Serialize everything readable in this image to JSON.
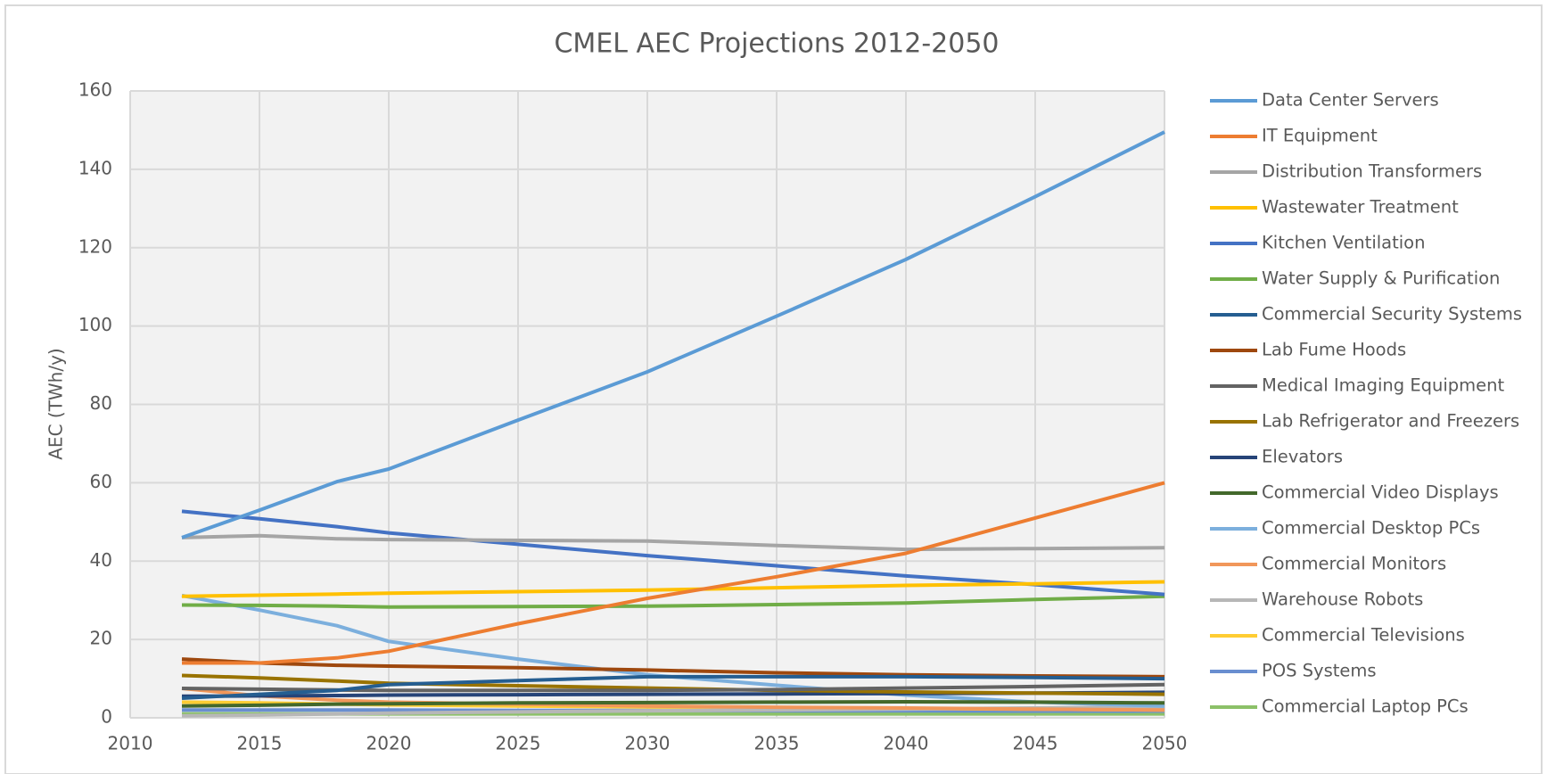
{
  "chart_data": {
    "type": "line",
    "title": "CMEL AEC Projections 2012-2050",
    "y_label": "AEC (TWh/y)",
    "x": [
      2012,
      2015,
      2018,
      2020,
      2025,
      2030,
      2035,
      2040,
      2045,
      2050
    ],
    "xlim": [
      2010,
      2050
    ],
    "xticks": [
      2010,
      2015,
      2020,
      2025,
      2030,
      2035,
      2040,
      2045,
      2050
    ],
    "ylim": [
      0,
      160
    ],
    "yticks": [
      0,
      20,
      40,
      60,
      80,
      100,
      120,
      140,
      160
    ],
    "grid": true,
    "legend": "right",
    "series": [
      {
        "name": "Data Center Servers",
        "color": "#5b9bd5",
        "values": [
          46,
          53,
          60.3,
          63.5,
          76,
          88.3,
          102.5,
          117,
          133,
          149.5
        ]
      },
      {
        "name": "IT Equipment",
        "color": "#ed7d31",
        "values": [
          14,
          14,
          15.3,
          17,
          24,
          30.5,
          36,
          42,
          51,
          60
        ]
      },
      {
        "name": "Distribution Transformers",
        "color": "#a5a5a5",
        "values": [
          46,
          46.5,
          45.7,
          45.5,
          45.3,
          45.1,
          44,
          43,
          43.2,
          43.4
        ]
      },
      {
        "name": "Wastewater Treatment",
        "color": "#ffc000",
        "values": [
          31,
          31.3,
          31.6,
          31.8,
          32.2,
          32.6,
          33.2,
          33.8,
          34.2,
          34.7
        ]
      },
      {
        "name": "Kitchen Ventilation",
        "color": "#4472c4",
        "values": [
          52.7,
          50.8,
          48.8,
          47.2,
          44.3,
          41.4,
          38.8,
          36.2,
          34,
          31.5
        ]
      },
      {
        "name": "Water Supply & Purification",
        "color": "#70ad47",
        "values": [
          28.8,
          28.7,
          28.5,
          28.3,
          28.4,
          28.5,
          28.9,
          29.3,
          30.2,
          31
        ]
      },
      {
        "name": "Commercial Security Systems",
        "color": "#255e91",
        "values": [
          5,
          6,
          7,
          8.5,
          9.5,
          10.5,
          10.5,
          10.5,
          10.3,
          10
        ]
      },
      {
        "name": "Lab Fume Hoods",
        "color": "#9e480e",
        "values": [
          15,
          14,
          13.4,
          13.2,
          12.8,
          12.2,
          11.5,
          11,
          10.7,
          10.5
        ]
      },
      {
        "name": "Medical Imaging Equipment",
        "color": "#636363",
        "values": [
          7.5,
          7.3,
          7.1,
          7,
          7,
          7,
          7.2,
          7.6,
          8,
          8.5
        ]
      },
      {
        "name": "Lab Refrigerator and Freezers",
        "color": "#997300",
        "values": [
          10.8,
          10.2,
          9.4,
          8.8,
          8.2,
          7.6,
          7,
          6.6,
          6.3,
          6
        ]
      },
      {
        "name": "Elevators",
        "color": "#264478",
        "values": [
          5.5,
          5.6,
          5.7,
          5.8,
          5.9,
          6,
          6.1,
          6.2,
          6.3,
          6.5
        ]
      },
      {
        "name": "Commercial Video Displays",
        "color": "#43682b",
        "values": [
          3,
          3.2,
          3.5,
          3.6,
          3.8,
          3.9,
          4,
          4.1,
          4,
          3.8
        ]
      },
      {
        "name": "Commercial Desktop PCs",
        "color": "#7cafdd",
        "values": [
          31.2,
          27.5,
          23.5,
          19.5,
          15,
          11,
          8.3,
          5.8,
          4,
          3
        ]
      },
      {
        "name": "Commercial Monitors",
        "color": "#f1975a",
        "values": [
          7.5,
          5.6,
          4.5,
          4,
          3.5,
          3,
          2.7,
          2.5,
          2.2,
          2
        ]
      },
      {
        "name": "Warehouse Robots",
        "color": "#b7b7b7",
        "values": [
          0.5,
          0.7,
          1,
          1.2,
          1.5,
          1.8,
          2,
          2.2,
          2.5,
          2.8
        ]
      },
      {
        "name": "Commercial Televisions",
        "color": "#ffcd33",
        "values": [
          4,
          3.8,
          3.5,
          3.3,
          3,
          2.8,
          2.6,
          2.4,
          2.2,
          2
        ]
      },
      {
        "name": "POS Systems",
        "color": "#698ed0",
        "values": [
          2,
          2,
          2,
          2,
          1.9,
          1.9,
          1.8,
          1.8,
          1.7,
          1.7
        ]
      },
      {
        "name": "Commercial Laptop PCs",
        "color": "#8cc168",
        "values": [
          1,
          1,
          1,
          1,
          1,
          1,
          1,
          1,
          1,
          1
        ]
      }
    ]
  }
}
